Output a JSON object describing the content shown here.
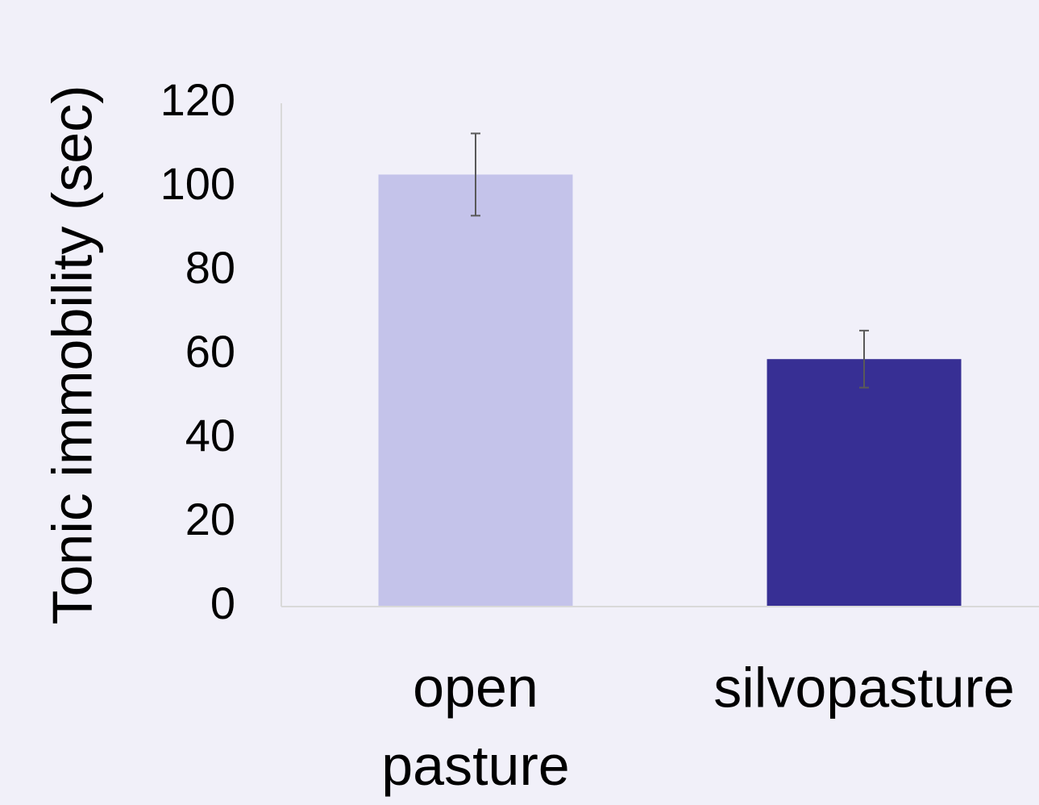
{
  "chart_data": {
    "type": "bar",
    "y_label": "Tonic immobility (sec)",
    "categories": [
      "open pasture",
      "silvopasture"
    ],
    "values": [
      103,
      59
    ],
    "errors": [
      9.8,
      6.8
    ],
    "colors": [
      "#c4c3ea",
      "#372f94"
    ],
    "ylim": [
      0,
      120
    ],
    "yticks": [
      0,
      20,
      40,
      60,
      80,
      100,
      120
    ],
    "grid": false
  }
}
